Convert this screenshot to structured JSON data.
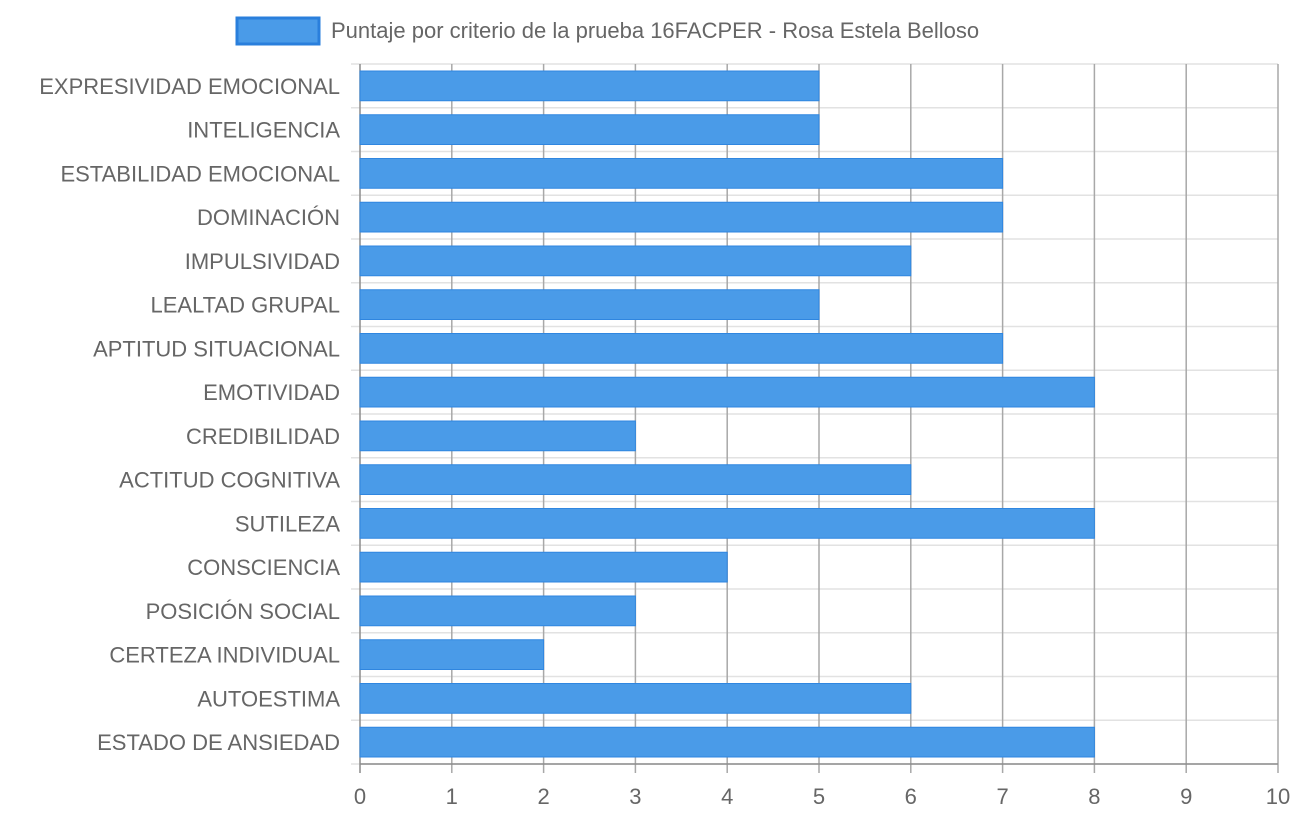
{
  "chart_data": {
    "type": "bar",
    "orientation": "horizontal",
    "categories": [
      "EXPRESIVIDAD EMOCIONAL",
      "INTELIGENCIA",
      "ESTABILIDAD EMOCIONAL",
      "DOMINACIÓN",
      "IMPULSIVIDAD",
      "LEALTAD GRUPAL",
      "APTITUD SITUACIONAL",
      "EMOTIVIDAD",
      "CREDIBILIDAD",
      "ACTITUD COGNITIVA",
      "SUTILEZA",
      "CONSCIENCIA",
      "POSICIÓN SOCIAL",
      "CERTEZA INDIVIDUAL",
      "AUTOESTIMA",
      "ESTADO DE ANSIEDAD"
    ],
    "series": [
      {
        "name": "Puntaje por criterio de la prueba 16FACPER - Rosa Estela Belloso",
        "values": [
          5,
          5,
          7,
          7,
          6,
          5,
          7,
          8,
          3,
          6,
          8,
          4,
          3,
          2,
          6,
          8
        ]
      }
    ],
    "xlim": [
      0,
      10
    ],
    "x_ticks": [
      "0",
      "1",
      "2",
      "3",
      "4",
      "5",
      "6",
      "7",
      "8",
      "9",
      "10"
    ],
    "grid": true,
    "legend_position": "top-center",
    "colors": {
      "bar_fill": "#4a9be8",
      "bar_stroke": "#2f86e0",
      "legend_fill": "#4a9be8",
      "legend_stroke": "#2a7fdc",
      "text": "#666666",
      "grid_vertical": "#a8a8a8",
      "grid_horizontal": "#e2e2e2",
      "axis": "#8c8c8c"
    }
  }
}
